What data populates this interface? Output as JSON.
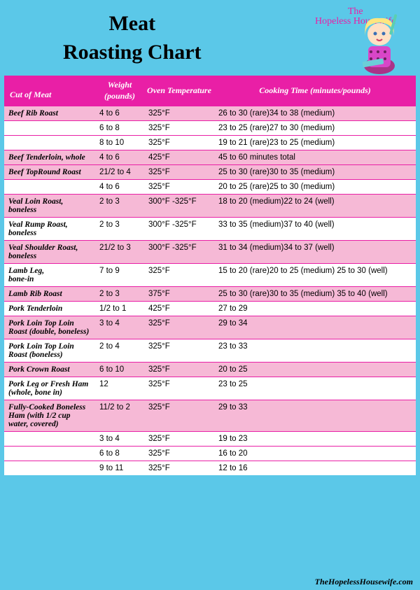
{
  "colors": {
    "page_bg": "#5bc8e8",
    "header_bg": "#e91fa6",
    "row_pink": "#f6b9d6",
    "row_white": "#ffffff",
    "divider": "#e91fa6",
    "title_text": "#000000",
    "header_text": "#ffffff"
  },
  "typography": {
    "title_fontsize": 30,
    "header_fontsize": 12,
    "cell_fontsize": 11.5
  },
  "title_line1": "Meat",
  "title_line2": "Roasting Chart",
  "brand_line1": "The",
  "brand_line2": "Hopeless Housewife",
  "columns": {
    "cut": "Cut of Meat",
    "weight": "Weight (pounds)",
    "temp": "Oven Temperature",
    "time": "Cooking Time (minutes/pounds)"
  },
  "rows": [
    {
      "bg": "pink",
      "cut": "Beef Rib Roast",
      "weight": "4 to 6",
      "temp": "325°F",
      "time": "26 to 30 (rare)34 to 38 (medium)"
    },
    {
      "bg": "white",
      "cut": "",
      "weight": "6 to 8",
      "temp": "325°F",
      "time": "23 to 25 (rare)27 to 30 (medium)"
    },
    {
      "bg": "white",
      "cut": "",
      "weight": "8 to 10",
      "temp": "325°F",
      "time": "19 to 21 (rare)23 to 25 (medium)"
    },
    {
      "bg": "pink",
      "cut": "Beef Tenderloin, whole",
      "weight": "4 to 6",
      "temp": "425°F",
      "time": "45 to 60 minutes total"
    },
    {
      "bg": "pink",
      "cut": "Beef TopRound Roast",
      "weight": "21/2 to 4",
      "temp": "325°F",
      "time": "25 to 30 (rare)30 to 35 (medium)"
    },
    {
      "bg": "white",
      "cut": "",
      "weight": "4 to 6",
      "temp": "325°F",
      "time": "20 to 25 (rare)25 to 30 (medium)"
    },
    {
      "bg": "pink",
      "cut": "Veal Loin Roast, boneless",
      "weight": "2 to 3",
      "temp": "300°F -325°F",
      "time": "18 to 20 (medium)22 to 24 (well)"
    },
    {
      "bg": "white",
      "cut": "Veal Rump Roast, boneless",
      "weight": "2 to 3",
      "temp": "300°F -325°F",
      "time": "33 to 35 (medium)37 to 40 (well)"
    },
    {
      "bg": "pink",
      "cut": "Veal Shoulder Roast, boneless",
      "weight": "21/2 to 3",
      "temp": "300°F -325°F",
      "time": "31 to 34 (medium)34 to 37 (well)"
    },
    {
      "bg": "white",
      "cut": "Lamb Leg,\nbone-in",
      "weight": "7 to 9",
      "temp": "325°F",
      "time": "15 to 20 (rare)20 to 25 (medium) 25 to 30 (well)"
    },
    {
      "bg": "pink",
      "cut": "Lamb Rib Roast",
      "weight": "2 to 3",
      "temp": "375°F",
      "time": "25 to 30 (rare)30 to 35 (medium) 35 to 40 (well)"
    },
    {
      "bg": "white",
      "cut": "Pork Tenderloin",
      "weight": "1/2 to 1",
      "temp": "425°F",
      "time": "27 to 29"
    },
    {
      "bg": "pink",
      "cut": "Pork Loin Top Loin Roast (double, boneless)",
      "weight": "3 to 4",
      "temp": "325°F",
      "time": "29 to 34"
    },
    {
      "bg": "white",
      "cut": "Pork Loin Top Loin Roast (boneless)",
      "weight": "2 to 4",
      "temp": "325°F",
      "time": "23 to 33"
    },
    {
      "bg": "pink",
      "cut": "Pork Crown Roast",
      "weight": "6 to 10",
      "temp": "325°F",
      "time": "20 to 25"
    },
    {
      "bg": "white",
      "cut": "Pork Leg or Fresh Ham (whole, bone in)",
      "weight": "12",
      "temp": "325°F",
      "time": "23 to 25"
    },
    {
      "bg": "pink",
      "cut": "Fully-Cooked Boneless Ham (with 1/2 cup water, covered)",
      "weight": "11/2 to 2",
      "temp": "325°F",
      "time": "29 to 33"
    },
    {
      "bg": "white",
      "cut": "",
      "weight": "3 to 4",
      "temp": "325°F",
      "time": "19 to 23"
    },
    {
      "bg": "white",
      "cut": "",
      "weight": "6 to 8",
      "temp": "325°F",
      "time": "16 to 20"
    },
    {
      "bg": "white",
      "cut": "",
      "weight": "9 to 11",
      "temp": "325°F",
      "time": "12 to 16"
    }
  ],
  "footer": "TheHopelessHousewife.com"
}
